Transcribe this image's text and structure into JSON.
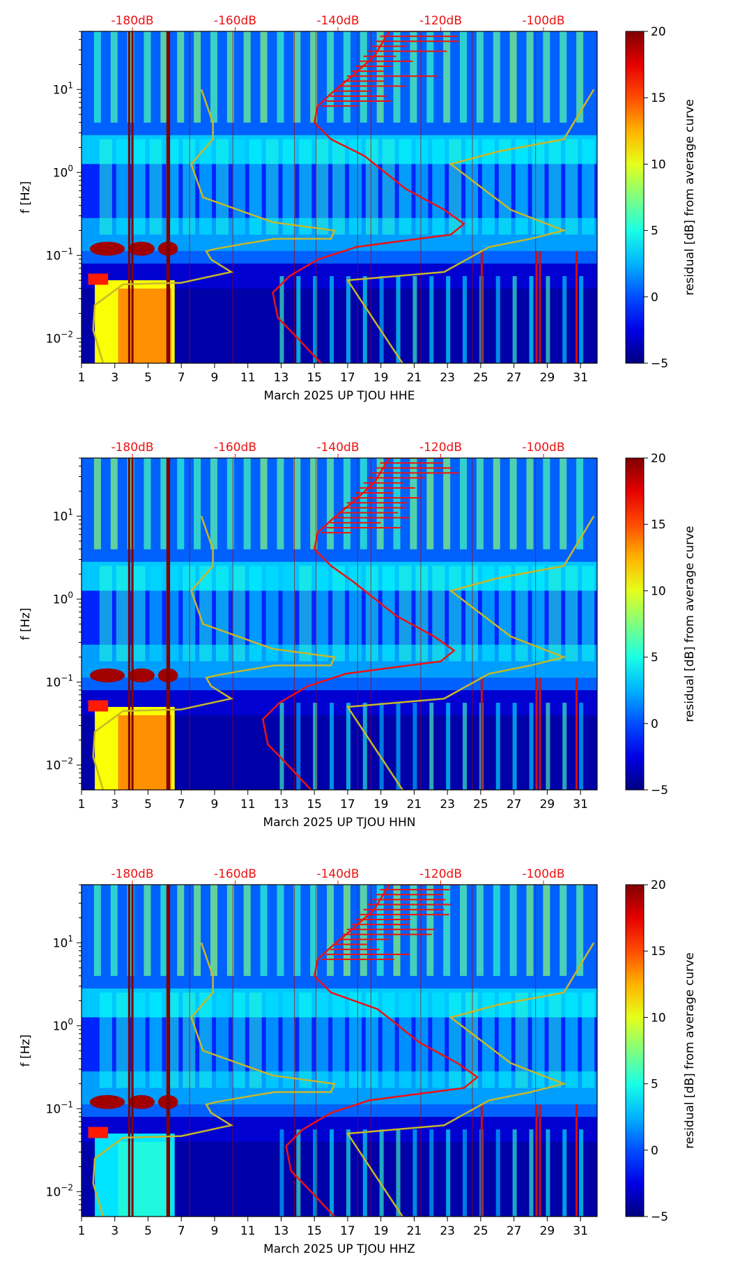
{
  "chart_data": [
    {
      "type": "heatmap",
      "title": "",
      "xlabel": "March 2025 UP TJOU  HHE",
      "ylabel": "f [Hz]",
      "colorbar_label": "residual [dB] from average curve",
      "colorbar_ticks": [
        "20",
        "15",
        "10",
        "5",
        "0",
        "−5"
      ],
      "colorbar_range": [
        -5,
        20
      ],
      "x_ticks": [
        "1",
        "3",
        "5",
        "7",
        "9",
        "11",
        "13",
        "15",
        "17",
        "19",
        "21",
        "23",
        "25",
        "27",
        "29",
        "31"
      ],
      "y_ticks": [
        {
          "base": "10",
          "exp": "1"
        },
        {
          "base": "10",
          "exp": "0"
        },
        {
          "base": "10",
          "exp": "−1"
        },
        {
          "base": "10",
          "exp": "−2"
        }
      ],
      "top_ticks": [
        "-180dB",
        "-160dB",
        "-140dB",
        "-120dB",
        "-100dB"
      ],
      "series": [
        {
          "name": "median PSD (red)",
          "color": "#ee1111"
        },
        {
          "name": "noise model bounds (yellow)",
          "color": "#c8b828"
        }
      ]
    },
    {
      "type": "heatmap",
      "title": "",
      "xlabel": "March 2025 UP TJOU  HHN",
      "ylabel": "f [Hz]",
      "colorbar_label": "residual [dB] from average curve",
      "colorbar_ticks": [
        "20",
        "15",
        "10",
        "5",
        "0",
        "−5"
      ],
      "colorbar_range": [
        -5,
        20
      ],
      "x_ticks": [
        "1",
        "3",
        "5",
        "7",
        "9",
        "11",
        "13",
        "15",
        "17",
        "19",
        "21",
        "23",
        "25",
        "27",
        "29",
        "31"
      ],
      "y_ticks": [
        {
          "base": "10",
          "exp": "1"
        },
        {
          "base": "10",
          "exp": "0"
        },
        {
          "base": "10",
          "exp": "−1"
        },
        {
          "base": "10",
          "exp": "−2"
        }
      ],
      "top_ticks": [
        "-180dB",
        "-160dB",
        "-140dB",
        "-120dB",
        "-100dB"
      ],
      "series": [
        {
          "name": "median PSD (red)",
          "color": "#ee1111"
        },
        {
          "name": "noise model bounds (yellow)",
          "color": "#c8b828"
        }
      ]
    },
    {
      "type": "heatmap",
      "title": "",
      "xlabel": "March 2025 UP TJOU  HHZ",
      "ylabel": "f [Hz]",
      "colorbar_label": "residual [dB] from average curve",
      "colorbar_ticks": [
        "20",
        "15",
        "10",
        "5",
        "0",
        "−5"
      ],
      "colorbar_range": [
        -5,
        20
      ],
      "x_ticks": [
        "1",
        "3",
        "5",
        "7",
        "9",
        "11",
        "13",
        "15",
        "17",
        "19",
        "21",
        "23",
        "25",
        "27",
        "29",
        "31"
      ],
      "y_ticks": [
        {
          "base": "10",
          "exp": "1"
        },
        {
          "base": "10",
          "exp": "0"
        },
        {
          "base": "10",
          "exp": "−1"
        },
        {
          "base": "10",
          "exp": "−2"
        }
      ],
      "top_ticks": [
        "-180dB",
        "-160dB",
        "-140dB",
        "-120dB",
        "-100dB"
      ],
      "series": [
        {
          "name": "median PSD (red)",
          "color": "#ee1111"
        },
        {
          "name": "noise model bounds (yellow)",
          "color": "#c8b828"
        }
      ]
    }
  ]
}
